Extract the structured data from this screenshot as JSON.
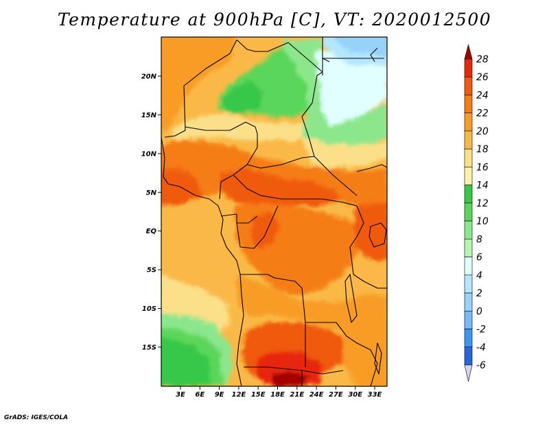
{
  "title": "Temperature at 900hPa [C], VT: 2020012500",
  "credit": "GrADS: IGES/COLA",
  "map": {
    "lat_range": [
      -20,
      25
    ],
    "lon_range": [
      0,
      35
    ],
    "lat_ticks": [
      {
        "value": 20,
        "label": "20N"
      },
      {
        "value": 15,
        "label": "15N"
      },
      {
        "value": 10,
        "label": "10N"
      },
      {
        "value": 5,
        "label": "5N"
      },
      {
        "value": 0,
        "label": "EQ"
      },
      {
        "value": -5,
        "label": "5S"
      },
      {
        "value": -10,
        "label": "10S"
      },
      {
        "value": -15,
        "label": "15S"
      }
    ],
    "lon_ticks": [
      {
        "value": 3,
        "label": "3E"
      },
      {
        "value": 6,
        "label": "6E"
      },
      {
        "value": 9,
        "label": "9E"
      },
      {
        "value": 12,
        "label": "12E"
      },
      {
        "value": 15,
        "label": "15E"
      },
      {
        "value": 18,
        "label": "18E"
      },
      {
        "value": 21,
        "label": "21E"
      },
      {
        "value": 24,
        "label": "24E"
      },
      {
        "value": 27,
        "label": "27E"
      },
      {
        "value": 30,
        "label": "30E"
      },
      {
        "value": 33,
        "label": "33E"
      }
    ]
  },
  "colorbar": {
    "levels": [
      28,
      26,
      24,
      22,
      20,
      18,
      16,
      14,
      12,
      10,
      8,
      6,
      4,
      2,
      0,
      -2,
      -4,
      -6
    ],
    "colors": [
      "#a50000",
      "#e8280a",
      "#f05a0f",
      "#f57d14",
      "#f89c28",
      "#fab946",
      "#fbe089",
      "#fff0aa",
      "#37c84a",
      "#5ad75a",
      "#8ce78c",
      "#b4f5b4",
      "#e1ffff",
      "#b4e6ff",
      "#96d2fa",
      "#78b9fa",
      "#3c96f5",
      "#2864dc",
      "#1446c8",
      "#1432a0"
    ]
  }
}
